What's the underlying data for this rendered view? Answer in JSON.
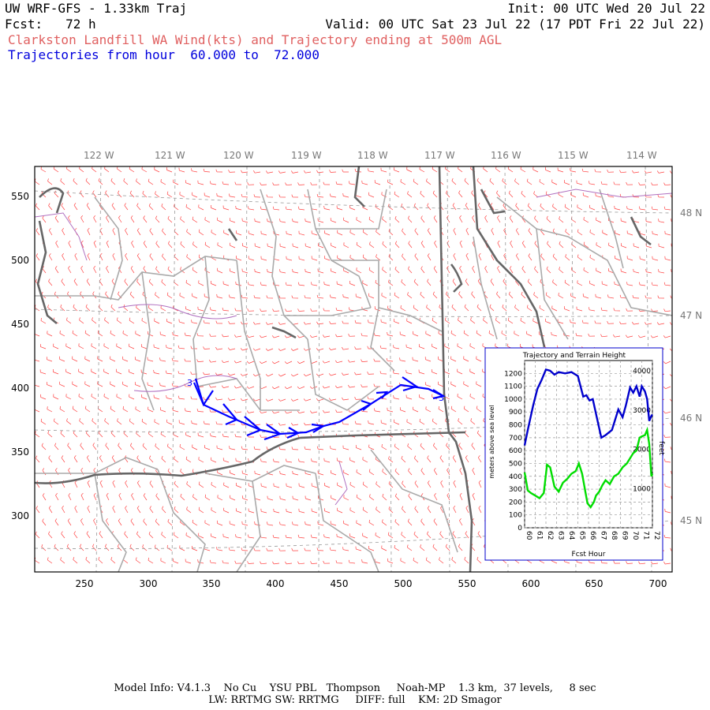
{
  "header": {
    "title_left": "UW WRF-GFS - 1.33km Traj",
    "title_right": "Init: 00 UTC Wed 20 Jul 22",
    "fcst": "Fcst:   72 h",
    "valid": "Valid: 00 UTC Sat 23 Jul 22 (17 PDT Fri 22 Jul 22)",
    "subtitle": "Clarkston Landfill WA Wind(kts) and Trajectory ending at 500m AGL",
    "traj_hours": "Trajectories from hour  60.000 to  72.000"
  },
  "map": {
    "lon_labels": [
      "122 W",
      "121 W",
      "120 W",
      "119 W",
      "118 W",
      "117 W",
      "116 W",
      "115 W",
      "114 W"
    ],
    "lat_labels": [
      "48 N",
      "47 N",
      "46 N",
      "45 N"
    ],
    "x_ticks": [
      "250",
      "300",
      "350",
      "400",
      "450",
      "500",
      "550",
      "600",
      "650",
      "700"
    ],
    "y_ticks": [
      "550",
      "500",
      "450",
      "400",
      "350",
      "300"
    ],
    "traj_start_label": "3",
    "traj_end_label": "3",
    "colors": {
      "wind_barb": "#ff4040",
      "trajectory": "#0000ff",
      "grid": "#999999",
      "border": "#666666",
      "county": "#aaaaaa",
      "water": "#b070c0"
    }
  },
  "inset": {
    "title": "Trajectory and Terrain Height",
    "ylabel_left": "meters above sea level",
    "ylabel_right": "feet",
    "xlabel": "Fcst Hour",
    "left_ticks": [
      "0",
      "100",
      "200",
      "300",
      "400",
      "500",
      "600",
      "700",
      "800",
      "900",
      "1000",
      "1100",
      "1200"
    ],
    "right_ticks": [
      "1000",
      "2000",
      "3000",
      "4000"
    ],
    "x_ticks": [
      "60",
      "61",
      "62",
      "63",
      "64",
      "65",
      "66",
      "67",
      "68",
      "69",
      "70",
      "71",
      "72"
    ],
    "series": [
      {
        "color": "#0000cc",
        "x": [
          60,
          60.3,
          60.8,
          61.2,
          61.6,
          62,
          62.4,
          62.8,
          63.2,
          63.8,
          64.4,
          65,
          65.5,
          65.8,
          66.1,
          66.4,
          66.8,
          67.2,
          67.6,
          68.2,
          68.8,
          69.2,
          69.5,
          69.9,
          70.2,
          70.5,
          70.8,
          71,
          71.3,
          71.5,
          71.7,
          71.9,
          72
        ],
        "y": [
          640,
          760,
          950,
          1080,
          1150,
          1230,
          1220,
          1190,
          1210,
          1200,
          1210,
          1180,
          1020,
          1030,
          990,
          1000,
          850,
          700,
          720,
          760,
          920,
          860,
          950,
          1090,
          1050,
          1100,
          1020,
          1100,
          1060,
          1000,
          830,
          870,
          880
        ]
      },
      {
        "color": "#00dd00",
        "x": [
          60,
          60.3,
          60.6,
          61,
          61.4,
          61.8,
          62.1,
          62.4,
          62.8,
          63.2,
          63.6,
          64,
          64.4,
          64.8,
          65.1,
          65.4,
          65.7,
          65.9,
          66.2,
          66.5,
          66.7,
          67,
          67.3,
          67.6,
          68,
          68.4,
          68.8,
          69.2,
          69.6,
          69.9,
          70.2,
          70.5,
          70.8,
          71,
          71.3,
          71.5,
          71.7,
          71.9,
          72
        ],
        "y": [
          430,
          290,
          270,
          250,
          230,
          270,
          490,
          470,
          320,
          280,
          350,
          380,
          420,
          440,
          500,
          420,
          280,
          190,
          160,
          200,
          250,
          280,
          330,
          370,
          340,
          400,
          420,
          470,
          500,
          540,
          580,
          600,
          700,
          710,
          720,
          760,
          650,
          400,
          420
        ]
      }
    ]
  },
  "footer": {
    "line1": "Model Info: V4.1.3    No Cu    YSU PBL   Thompson     Noah-MP    1.3 km,  37 levels,     8 sec",
    "line2": "LW: RRTMG SW: RRTMG     DIFF: full    KM: 2D Smagor"
  }
}
